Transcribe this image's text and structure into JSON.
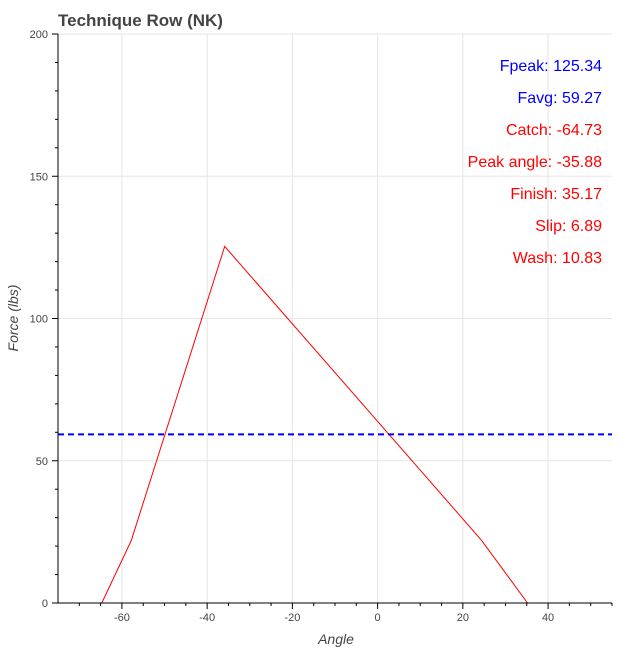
{
  "chart_data": {
    "type": "line",
    "title": "Technique Row (NK)",
    "xlabel": "Angle",
    "ylabel": "Force (lbs)",
    "xlim": [
      -75,
      55
    ],
    "ylim": [
      0,
      200
    ],
    "x_ticks": [
      -60,
      -40,
      -20,
      0,
      20,
      40
    ],
    "y_ticks": [
      0,
      50,
      100,
      150,
      200
    ],
    "grid": true,
    "series": [
      {
        "color": "#ff0000",
        "style": "solid",
        "x": [
          -64.73,
          -57.8,
          -35.88,
          24.4,
          35.17
        ],
        "y": [
          0,
          22,
          125.34,
          22,
          0
        ]
      },
      {
        "color": "#0000ff",
        "style": "dashed",
        "x": [
          -75,
          55
        ],
        "y": [
          59.27,
          59.27
        ]
      }
    ],
    "annotations": [
      {
        "text": "Fpeak: 125.34",
        "color": "#0000ff"
      },
      {
        "text": "Favg: 59.27",
        "color": "#0000ff"
      },
      {
        "text": "Catch: -64.73",
        "color": "#ff0000"
      },
      {
        "text": "Peak angle: -35.88",
        "color": "#ff0000"
      },
      {
        "text": "Finish: 35.17",
        "color": "#ff0000"
      },
      {
        "text": "Slip: 6.89",
        "color": "#ff0000"
      },
      {
        "text": "Wash: 10.83",
        "color": "#ff0000"
      }
    ]
  }
}
